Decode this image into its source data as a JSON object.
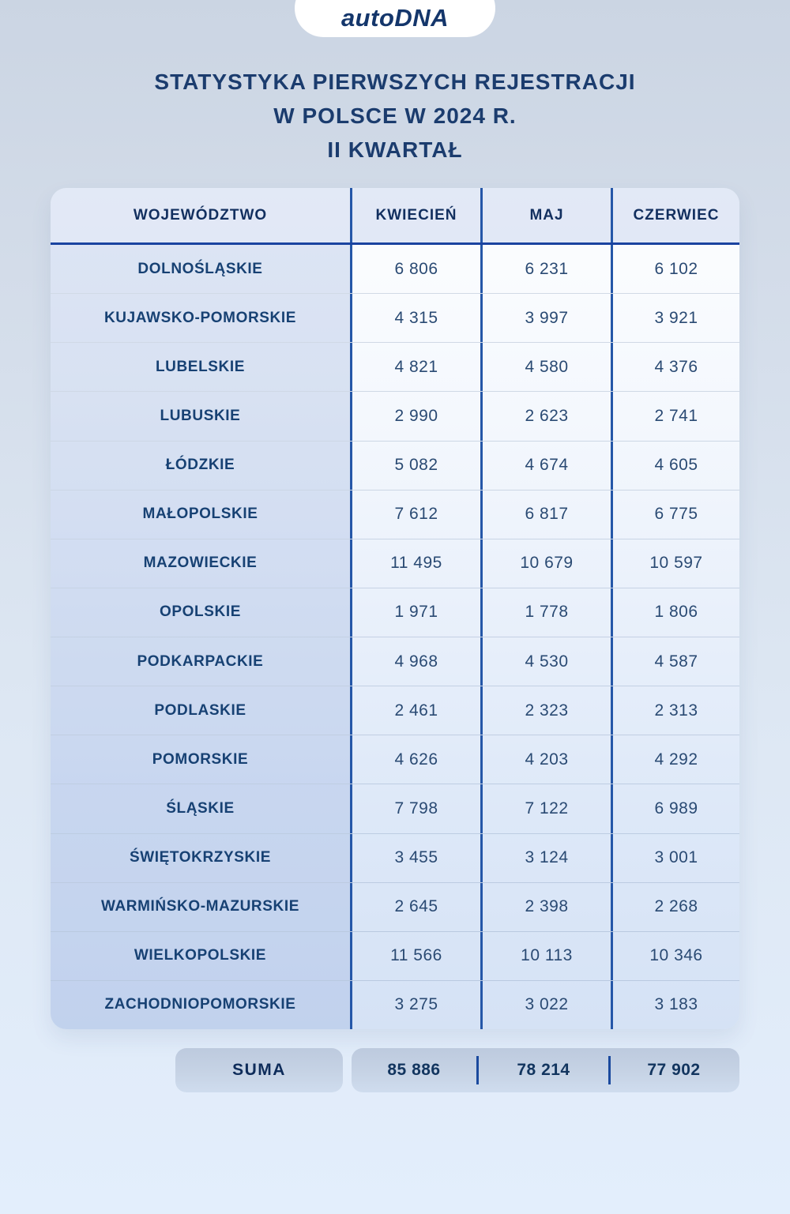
{
  "logo": {
    "text": "autoDNA"
  },
  "title": {
    "line1": "STATYSTYKA PIERWSZYCH REJESTRACJI",
    "line2": "W POLSCE W 2024 R.",
    "line3": "II KWARTAŁ"
  },
  "table": {
    "headers": [
      "WOJEWÓDZTWO",
      "KWIECIEŃ",
      "MAJ",
      "CZERWIEC"
    ],
    "rows": [
      {
        "name": "DOLNOŚLĄSKIE",
        "values": [
          "6 806",
          "6 231",
          "6 102"
        ]
      },
      {
        "name": "KUJAWSKO-POMORSKIE",
        "values": [
          "4 315",
          "3 997",
          "3 921"
        ]
      },
      {
        "name": "LUBELSKIE",
        "values": [
          "4 821",
          "4 580",
          "4 376"
        ]
      },
      {
        "name": "LUBUSKIE",
        "values": [
          "2 990",
          "2 623",
          "2 741"
        ]
      },
      {
        "name": "ŁÓDZKIE",
        "values": [
          "5 082",
          "4 674",
          "4 605"
        ]
      },
      {
        "name": "MAŁOPOLSKIE",
        "values": [
          "7 612",
          "6 817",
          "6 775"
        ]
      },
      {
        "name": "MAZOWIECKIE",
        "values": [
          "11 495",
          "10 679",
          "10 597"
        ]
      },
      {
        "name": "OPOLSKIE",
        "values": [
          "1 971",
          "1 778",
          "1 806"
        ]
      },
      {
        "name": "PODKARPACKIE",
        "values": [
          "4 968",
          "4 530",
          "4 587"
        ]
      },
      {
        "name": "PODLASKIE",
        "values": [
          "2 461",
          "2 323",
          "2 313"
        ]
      },
      {
        "name": "POMORSKIE",
        "values": [
          "4 626",
          "4 203",
          "4 292"
        ]
      },
      {
        "name": "ŚLĄSKIE",
        "values": [
          "7 798",
          "7 122",
          "6 989"
        ]
      },
      {
        "name": "ŚWIĘTOKRZYSKIE",
        "values": [
          "3 455",
          "3 124",
          "3 001"
        ]
      },
      {
        "name": "WARMIŃSKO-MAZURSKIE",
        "values": [
          "2 645",
          "2 398",
          "2 268"
        ]
      },
      {
        "name": "WIELKOPOLSKIE",
        "values": [
          "11 566",
          "10 113",
          "10 346"
        ]
      },
      {
        "name": "ZACHODNIOPOMORSKIE",
        "values": [
          "3 275",
          "3 022",
          "3 183"
        ]
      }
    ],
    "summary": {
      "label": "SUMA",
      "values": [
        "85 886",
        "78 214",
        "77 902"
      ]
    }
  },
  "colors": {
    "accent_divider": "#2557a8",
    "header_underline": "#1a43a0",
    "text_navy": "#1b3c6e",
    "background_top": "#cbd5e3",
    "background_bottom": "#e3eefc"
  },
  "chart_data": {
    "type": "table",
    "title": "STATYSTYKA PIERWSZYCH REJESTRACJI W POLSCE W 2024 R. — II KWARTAŁ",
    "columns": [
      "WOJEWÓDZTWO",
      "KWIECIEŃ",
      "MAJ",
      "CZERWIEC"
    ],
    "categories": [
      "DOLNOŚLĄSKIE",
      "KUJAWSKO-POMORSKIE",
      "LUBELSKIE",
      "LUBUSKIE",
      "ŁÓDZKIE",
      "MAŁOPOLSKIE",
      "MAZOWIECKIE",
      "OPOLSKIE",
      "PODKARPACKIE",
      "PODLASKIE",
      "POMORSKIE",
      "ŚLĄSKIE",
      "ŚWIĘTOKRZYSKIE",
      "WARMIŃSKO-MAZURSKIE",
      "WIELKOPOLSKIE",
      "ZACHODNIOPOMORSKIE"
    ],
    "series": [
      {
        "name": "KWIECIEŃ",
        "values": [
          6806,
          4315,
          4821,
          2990,
          5082,
          7612,
          11495,
          1971,
          4968,
          2461,
          4626,
          7798,
          3455,
          2645,
          11566,
          3275
        ]
      },
      {
        "name": "MAJ",
        "values": [
          6231,
          3997,
          4580,
          2623,
          4674,
          6817,
          10679,
          1778,
          4530,
          2323,
          4203,
          7122,
          3124,
          2398,
          10113,
          3022
        ]
      },
      {
        "name": "CZERWIEC",
        "values": [
          6102,
          3921,
          4376,
          2741,
          4605,
          6775,
          10597,
          1806,
          4587,
          2313,
          4292,
          6989,
          3001,
          2268,
          10346,
          3183
        ]
      }
    ],
    "totals": {
      "label": "SUMA",
      "values": [
        85886,
        78214,
        77902
      ]
    }
  }
}
